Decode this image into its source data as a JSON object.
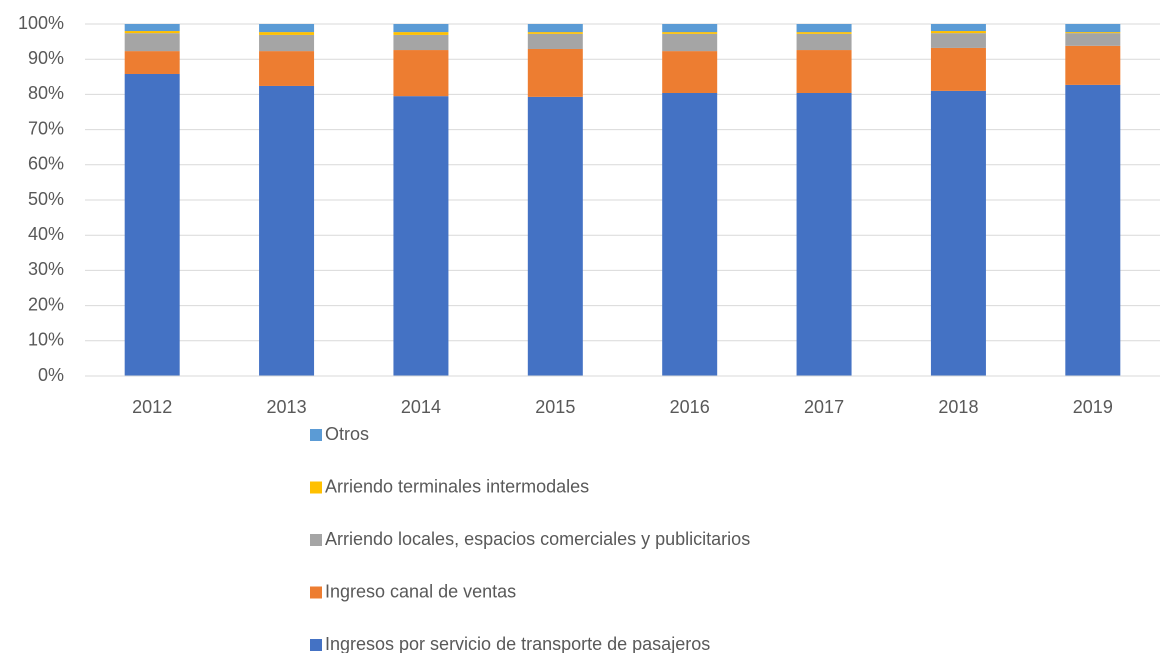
{
  "chart_data": {
    "type": "stacked_bar_100",
    "categories": [
      "2012",
      "2013",
      "2014",
      "2015",
      "2016",
      "2017",
      "2018",
      "2019"
    ],
    "series": [
      {
        "name": "Ingresos por servicio de transporte de pasajeros",
        "color": "#4472c4",
        "values": [
          85.8,
          82.4,
          79.5,
          79.3,
          80.4,
          80.4,
          81.0,
          82.7
        ]
      },
      {
        "name": "Ingreso canal de ventas",
        "color": "#ed7d31",
        "values": [
          6.5,
          9.9,
          13.1,
          13.6,
          11.9,
          12.2,
          12.2,
          11.1
        ]
      },
      {
        "name": "Arriendo locales, espacios comerciales y publicitarios",
        "color": "#a5a5a5",
        "values": [
          5.1,
          4.6,
          4.3,
          4.3,
          4.9,
          4.6,
          4.2,
          3.6
        ]
      },
      {
        "name": "Arriendo terminales intermodales",
        "color": "#ffc000",
        "values": [
          0.6,
          0.8,
          0.8,
          0.5,
          0.5,
          0.5,
          0.6,
          0.3
        ]
      },
      {
        "name": "Otros",
        "color": "#5b9bd5",
        "values": [
          2.0,
          2.3,
          2.3,
          2.3,
          2.3,
          2.3,
          2.0,
          2.3
        ]
      }
    ],
    "ylim": [
      0,
      100
    ],
    "yticks": [
      {
        "value": 0,
        "label": "0%"
      },
      {
        "value": 10,
        "label": "10%"
      },
      {
        "value": 20,
        "label": "20%"
      },
      {
        "value": 30,
        "label": "30%"
      },
      {
        "value": 40,
        "label": "40%"
      },
      {
        "value": 50,
        "label": "50%"
      },
      {
        "value": 60,
        "label": "60%"
      },
      {
        "value": 70,
        "label": "70%"
      },
      {
        "value": 80,
        "label": "80%"
      },
      {
        "value": 90,
        "label": "90%"
      },
      {
        "value": 100,
        "label": "100%"
      }
    ],
    "grid": true,
    "legend": "bottom"
  }
}
